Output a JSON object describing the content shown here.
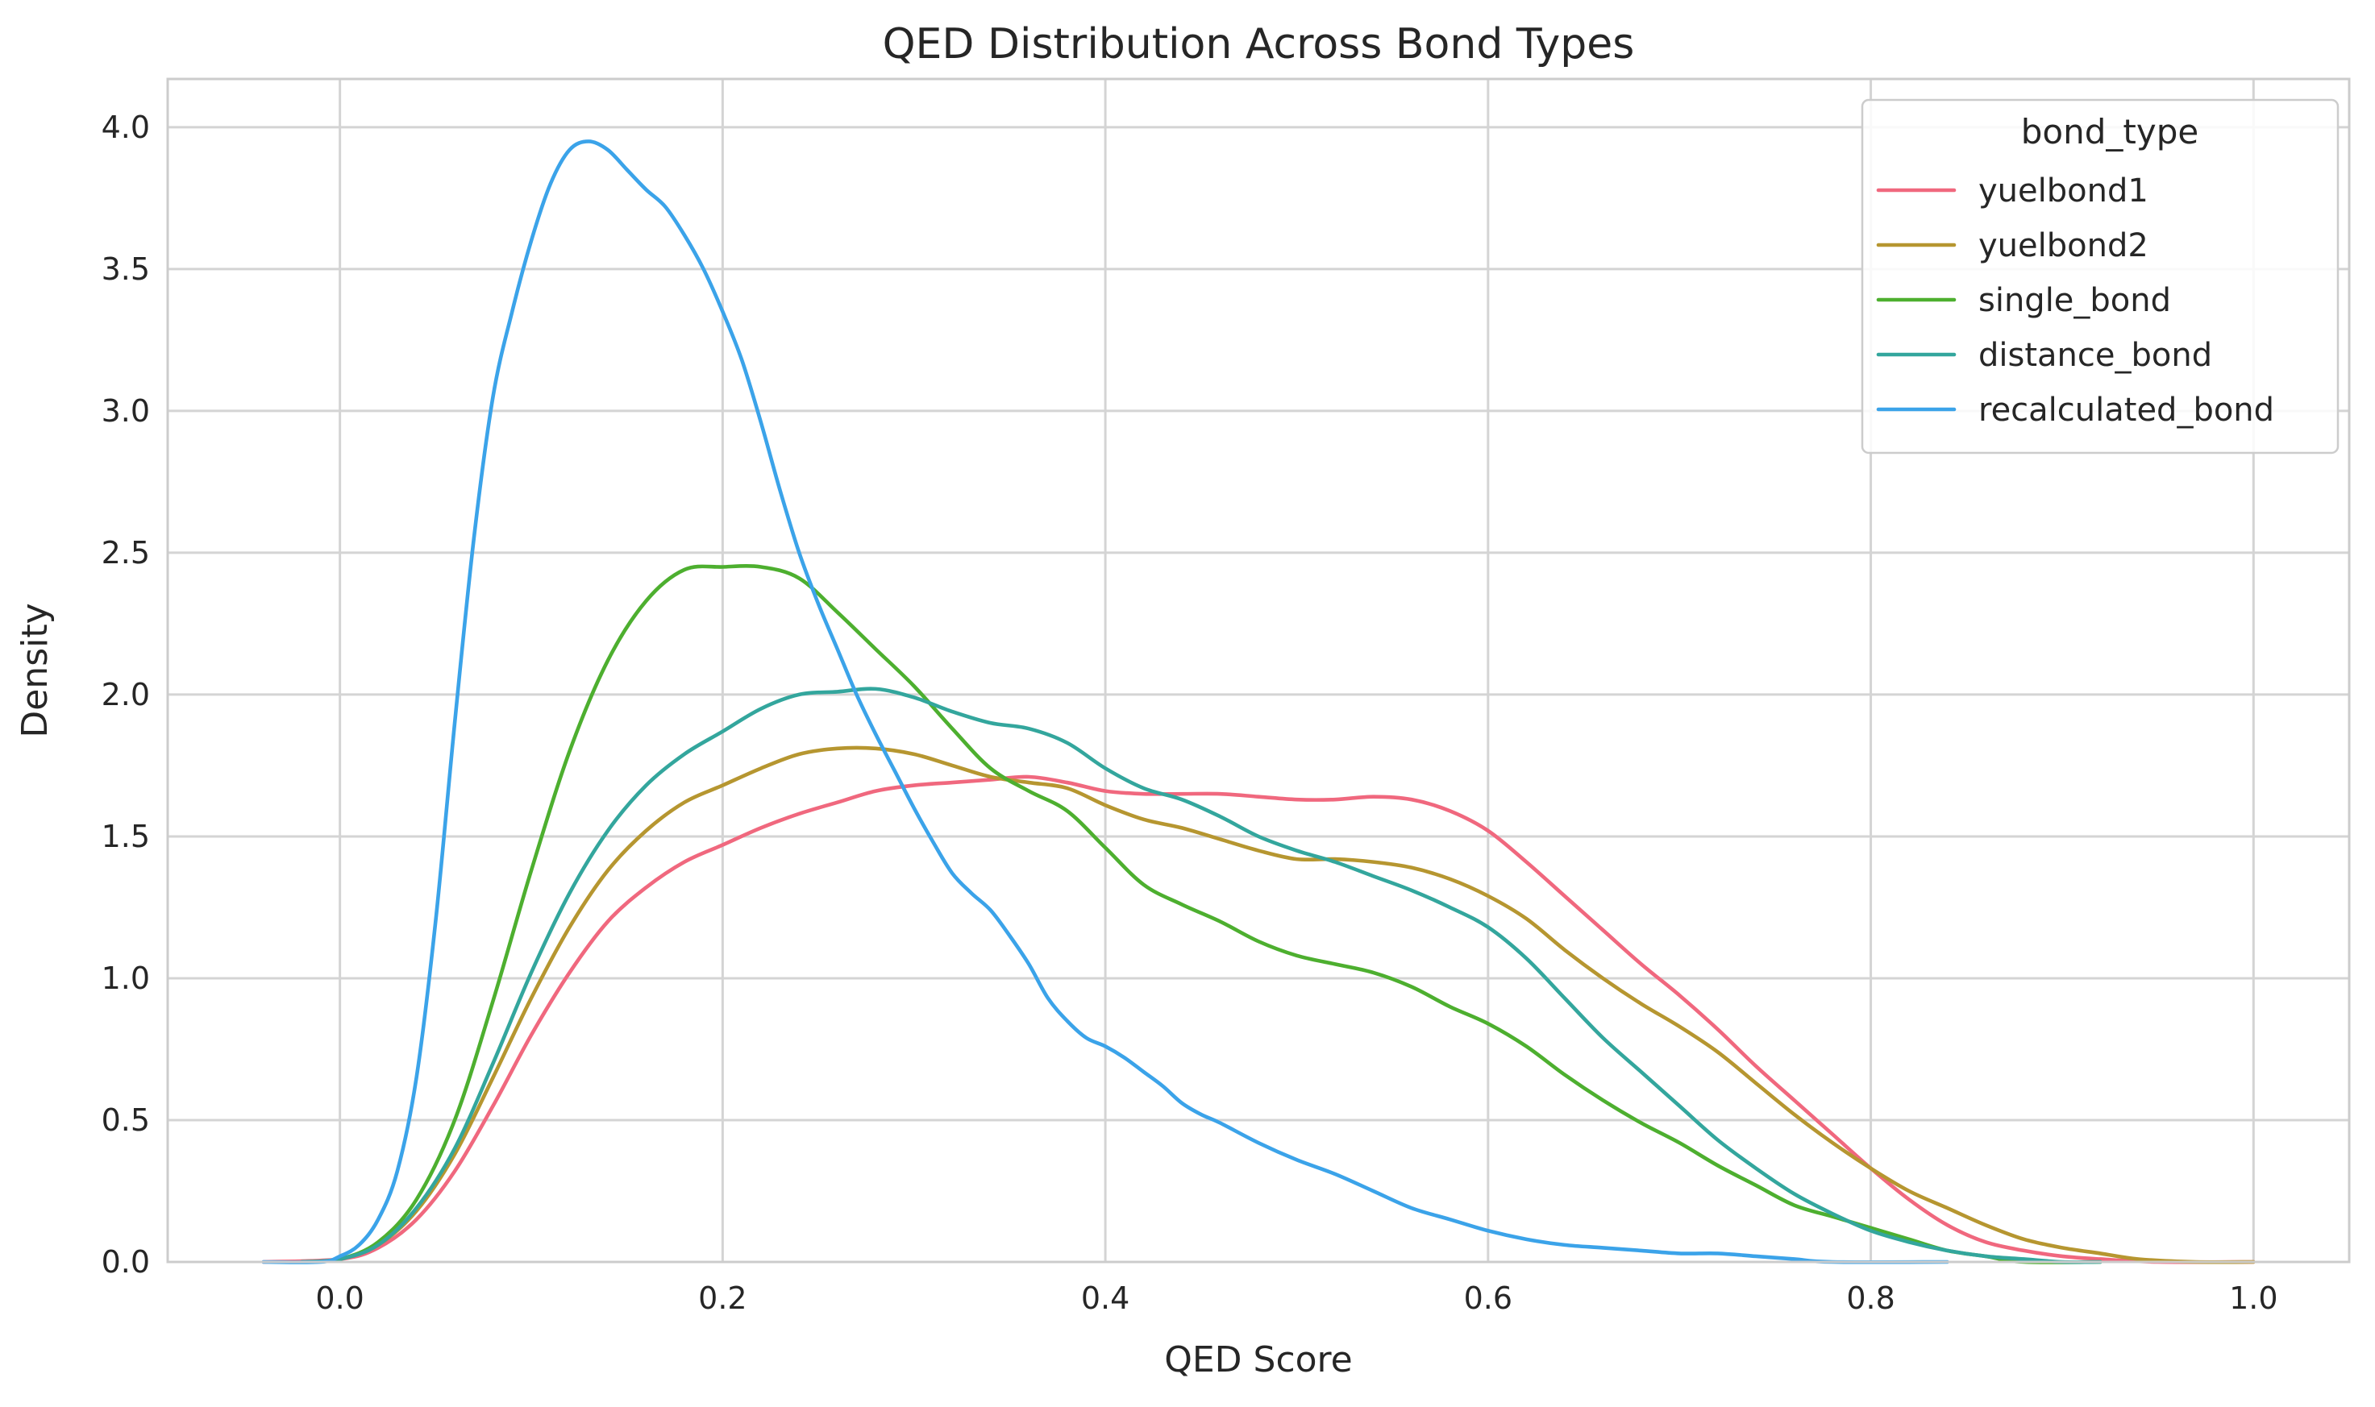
{
  "chart_data": {
    "type": "line",
    "title": "QED Distribution Across Bond Types",
    "xlabel": "QED Score",
    "ylabel": "Density",
    "xlim": [
      -0.09,
      1.05
    ],
    "ylim": [
      0,
      4.17
    ],
    "xticks": [
      0.0,
      0.2,
      0.4,
      0.6,
      0.8,
      1.0
    ],
    "xtick_labels": [
      "0.0",
      "0.2",
      "0.4",
      "0.6",
      "0.8",
      "1.0"
    ],
    "yticks": [
      0.0,
      0.5,
      1.0,
      1.5,
      2.0,
      2.5,
      3.0,
      3.5,
      4.0
    ],
    "ytick_labels": [
      "0.0",
      "0.5",
      "1.0",
      "1.5",
      "2.0",
      "2.5",
      "3.0",
      "3.5",
      "4.0"
    ],
    "grid": true,
    "legend": {
      "title": "bond_type",
      "position": "top-right"
    },
    "series": [
      {
        "name": "yuelbond1",
        "color": "#f0687e",
        "points": [
          [
            -0.04,
            0
          ],
          [
            0.0,
            0.01
          ],
          [
            0.02,
            0.05
          ],
          [
            0.04,
            0.15
          ],
          [
            0.06,
            0.32
          ],
          [
            0.08,
            0.55
          ],
          [
            0.1,
            0.8
          ],
          [
            0.12,
            1.02
          ],
          [
            0.14,
            1.2
          ],
          [
            0.16,
            1.32
          ],
          [
            0.18,
            1.41
          ],
          [
            0.2,
            1.47
          ],
          [
            0.22,
            1.53
          ],
          [
            0.24,
            1.58
          ],
          [
            0.26,
            1.62
          ],
          [
            0.28,
            1.66
          ],
          [
            0.3,
            1.68
          ],
          [
            0.32,
            1.69
          ],
          [
            0.34,
            1.7
          ],
          [
            0.36,
            1.71
          ],
          [
            0.38,
            1.69
          ],
          [
            0.4,
            1.66
          ],
          [
            0.42,
            1.65
          ],
          [
            0.44,
            1.65
          ],
          [
            0.46,
            1.65
          ],
          [
            0.48,
            1.64
          ],
          [
            0.5,
            1.63
          ],
          [
            0.52,
            1.63
          ],
          [
            0.54,
            1.64
          ],
          [
            0.56,
            1.63
          ],
          [
            0.58,
            1.59
          ],
          [
            0.6,
            1.52
          ],
          [
            0.62,
            1.41
          ],
          [
            0.64,
            1.29
          ],
          [
            0.66,
            1.17
          ],
          [
            0.68,
            1.05
          ],
          [
            0.7,
            0.94
          ],
          [
            0.72,
            0.82
          ],
          [
            0.74,
            0.69
          ],
          [
            0.76,
            0.57
          ],
          [
            0.78,
            0.45
          ],
          [
            0.8,
            0.33
          ],
          [
            0.82,
            0.22
          ],
          [
            0.84,
            0.13
          ],
          [
            0.86,
            0.07
          ],
          [
            0.88,
            0.04
          ],
          [
            0.9,
            0.02
          ],
          [
            0.92,
            0.01
          ],
          [
            0.95,
            0.0
          ],
          [
            1.0,
            0.0
          ]
        ]
      },
      {
        "name": "yuelbond2",
        "color": "#b69630",
        "points": [
          [
            -0.02,
            0
          ],
          [
            0.0,
            0.01
          ],
          [
            0.02,
            0.06
          ],
          [
            0.04,
            0.18
          ],
          [
            0.06,
            0.38
          ],
          [
            0.08,
            0.65
          ],
          [
            0.1,
            0.93
          ],
          [
            0.12,
            1.18
          ],
          [
            0.14,
            1.38
          ],
          [
            0.16,
            1.52
          ],
          [
            0.18,
            1.62
          ],
          [
            0.2,
            1.68
          ],
          [
            0.22,
            1.74
          ],
          [
            0.24,
            1.79
          ],
          [
            0.26,
            1.81
          ],
          [
            0.28,
            1.81
          ],
          [
            0.3,
            1.79
          ],
          [
            0.32,
            1.75
          ],
          [
            0.34,
            1.71
          ],
          [
            0.36,
            1.69
          ],
          [
            0.38,
            1.67
          ],
          [
            0.4,
            1.61
          ],
          [
            0.42,
            1.56
          ],
          [
            0.44,
            1.53
          ],
          [
            0.46,
            1.49
          ],
          [
            0.48,
            1.45
          ],
          [
            0.5,
            1.42
          ],
          [
            0.52,
            1.42
          ],
          [
            0.54,
            1.41
          ],
          [
            0.56,
            1.39
          ],
          [
            0.58,
            1.35
          ],
          [
            0.6,
            1.29
          ],
          [
            0.62,
            1.21
          ],
          [
            0.64,
            1.1
          ],
          [
            0.66,
            1.0
          ],
          [
            0.68,
            0.91
          ],
          [
            0.7,
            0.83
          ],
          [
            0.72,
            0.74
          ],
          [
            0.74,
            0.63
          ],
          [
            0.76,
            0.52
          ],
          [
            0.78,
            0.42
          ],
          [
            0.8,
            0.33
          ],
          [
            0.82,
            0.25
          ],
          [
            0.84,
            0.19
          ],
          [
            0.86,
            0.13
          ],
          [
            0.88,
            0.08
          ],
          [
            0.9,
            0.05
          ],
          [
            0.92,
            0.03
          ],
          [
            0.94,
            0.01
          ],
          [
            0.97,
            0.0
          ],
          [
            1.0,
            0.0
          ]
        ]
      },
      {
        "name": "single_bond",
        "color": "#4daf2f",
        "points": [
          [
            -0.02,
            0
          ],
          [
            0.0,
            0.01
          ],
          [
            0.02,
            0.07
          ],
          [
            0.04,
            0.22
          ],
          [
            0.06,
            0.5
          ],
          [
            0.08,
            0.92
          ],
          [
            0.1,
            1.38
          ],
          [
            0.12,
            1.8
          ],
          [
            0.14,
            2.12
          ],
          [
            0.16,
            2.33
          ],
          [
            0.18,
            2.44
          ],
          [
            0.2,
            2.45
          ],
          [
            0.22,
            2.45
          ],
          [
            0.24,
            2.41
          ],
          [
            0.26,
            2.29
          ],
          [
            0.28,
            2.16
          ],
          [
            0.3,
            2.03
          ],
          [
            0.32,
            1.88
          ],
          [
            0.34,
            1.74
          ],
          [
            0.36,
            1.66
          ],
          [
            0.38,
            1.59
          ],
          [
            0.4,
            1.46
          ],
          [
            0.42,
            1.33
          ],
          [
            0.44,
            1.26
          ],
          [
            0.46,
            1.2
          ],
          [
            0.48,
            1.13
          ],
          [
            0.5,
            1.08
          ],
          [
            0.52,
            1.05
          ],
          [
            0.54,
            1.02
          ],
          [
            0.56,
            0.97
          ],
          [
            0.58,
            0.9
          ],
          [
            0.6,
            0.84
          ],
          [
            0.62,
            0.76
          ],
          [
            0.64,
            0.66
          ],
          [
            0.66,
            0.57
          ],
          [
            0.68,
            0.49
          ],
          [
            0.7,
            0.42
          ],
          [
            0.72,
            0.34
          ],
          [
            0.74,
            0.27
          ],
          [
            0.76,
            0.2
          ],
          [
            0.78,
            0.16
          ],
          [
            0.8,
            0.12
          ],
          [
            0.82,
            0.08
          ],
          [
            0.84,
            0.04
          ],
          [
            0.86,
            0.02
          ],
          [
            0.88,
            0.0
          ],
          [
            0.92,
            0.0
          ]
        ]
      },
      {
        "name": "distance_bond",
        "color": "#33a69d",
        "points": [
          [
            -0.02,
            0
          ],
          [
            0.0,
            0.01
          ],
          [
            0.02,
            0.06
          ],
          [
            0.04,
            0.19
          ],
          [
            0.06,
            0.4
          ],
          [
            0.08,
            0.7
          ],
          [
            0.1,
            1.02
          ],
          [
            0.12,
            1.3
          ],
          [
            0.14,
            1.52
          ],
          [
            0.16,
            1.68
          ],
          [
            0.18,
            1.79
          ],
          [
            0.2,
            1.87
          ],
          [
            0.22,
            1.95
          ],
          [
            0.24,
            2.0
          ],
          [
            0.26,
            2.01
          ],
          [
            0.28,
            2.02
          ],
          [
            0.3,
            1.99
          ],
          [
            0.32,
            1.94
          ],
          [
            0.34,
            1.9
          ],
          [
            0.36,
            1.88
          ],
          [
            0.38,
            1.83
          ],
          [
            0.4,
            1.74
          ],
          [
            0.42,
            1.67
          ],
          [
            0.44,
            1.63
          ],
          [
            0.46,
            1.57
          ],
          [
            0.48,
            1.5
          ],
          [
            0.5,
            1.45
          ],
          [
            0.52,
            1.41
          ],
          [
            0.54,
            1.36
          ],
          [
            0.56,
            1.31
          ],
          [
            0.58,
            1.25
          ],
          [
            0.6,
            1.18
          ],
          [
            0.62,
            1.07
          ],
          [
            0.64,
            0.93
          ],
          [
            0.66,
            0.79
          ],
          [
            0.68,
            0.67
          ],
          [
            0.7,
            0.55
          ],
          [
            0.72,
            0.43
          ],
          [
            0.74,
            0.33
          ],
          [
            0.76,
            0.24
          ],
          [
            0.78,
            0.17
          ],
          [
            0.8,
            0.11
          ],
          [
            0.82,
            0.07
          ],
          [
            0.84,
            0.04
          ],
          [
            0.86,
            0.02
          ],
          [
            0.88,
            0.01
          ],
          [
            0.9,
            0.0
          ],
          [
            0.92,
            0.0
          ]
        ]
      },
      {
        "name": "recalculated_bond",
        "color": "#3ba3e9",
        "points": [
          [
            -0.04,
            0
          ],
          [
            -0.01,
            0.0
          ],
          [
            0.0,
            0.02
          ],
          [
            0.01,
            0.06
          ],
          [
            0.02,
            0.15
          ],
          [
            0.03,
            0.32
          ],
          [
            0.04,
            0.65
          ],
          [
            0.05,
            1.2
          ],
          [
            0.06,
            1.9
          ],
          [
            0.07,
            2.55
          ],
          [
            0.08,
            3.05
          ],
          [
            0.09,
            3.35
          ],
          [
            0.1,
            3.6
          ],
          [
            0.11,
            3.8
          ],
          [
            0.12,
            3.92
          ],
          [
            0.13,
            3.95
          ],
          [
            0.14,
            3.92
          ],
          [
            0.15,
            3.85
          ],
          [
            0.16,
            3.78
          ],
          [
            0.17,
            3.72
          ],
          [
            0.18,
            3.62
          ],
          [
            0.19,
            3.5
          ],
          [
            0.2,
            3.35
          ],
          [
            0.21,
            3.18
          ],
          [
            0.22,
            2.96
          ],
          [
            0.23,
            2.72
          ],
          [
            0.24,
            2.5
          ],
          [
            0.25,
            2.32
          ],
          [
            0.26,
            2.16
          ],
          [
            0.27,
            2.0
          ],
          [
            0.28,
            1.86
          ],
          [
            0.29,
            1.73
          ],
          [
            0.3,
            1.6
          ],
          [
            0.31,
            1.48
          ],
          [
            0.32,
            1.37
          ],
          [
            0.33,
            1.3
          ],
          [
            0.34,
            1.24
          ],
          [
            0.35,
            1.15
          ],
          [
            0.36,
            1.05
          ],
          [
            0.37,
            0.93
          ],
          [
            0.38,
            0.85
          ],
          [
            0.39,
            0.79
          ],
          [
            0.4,
            0.76
          ],
          [
            0.41,
            0.72
          ],
          [
            0.42,
            0.67
          ],
          [
            0.43,
            0.62
          ],
          [
            0.44,
            0.56
          ],
          [
            0.45,
            0.52
          ],
          [
            0.46,
            0.49
          ],
          [
            0.48,
            0.42
          ],
          [
            0.5,
            0.36
          ],
          [
            0.52,
            0.31
          ],
          [
            0.54,
            0.25
          ],
          [
            0.56,
            0.19
          ],
          [
            0.58,
            0.15
          ],
          [
            0.6,
            0.11
          ],
          [
            0.62,
            0.08
          ],
          [
            0.64,
            0.06
          ],
          [
            0.66,
            0.05
          ],
          [
            0.68,
            0.04
          ],
          [
            0.7,
            0.03
          ],
          [
            0.72,
            0.03
          ],
          [
            0.74,
            0.02
          ],
          [
            0.76,
            0.01
          ],
          [
            0.78,
            0.0
          ],
          [
            0.84,
            0.0
          ]
        ]
      }
    ]
  }
}
